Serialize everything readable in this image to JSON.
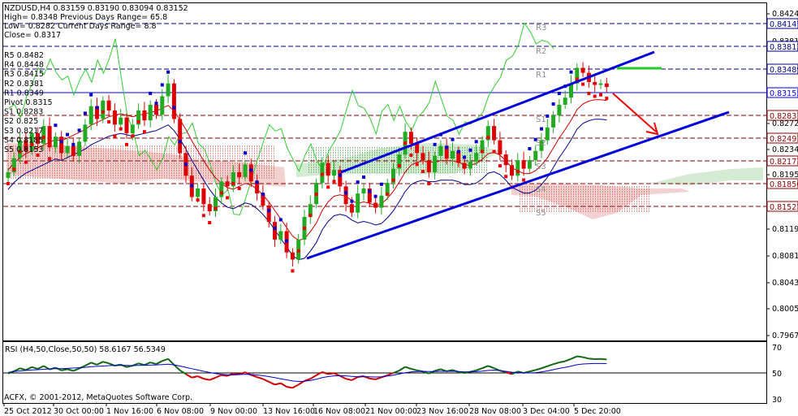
{
  "chart_data": {
    "type": "candlestick",
    "symbol_header": "NZDUSD,H4  0.83159 0.83190 0.83094 0.83152",
    "info_lines": [
      "High= 0.8348    Previous Days Range= 65.8",
      "Low= 0.8282    Current Days Range= 8.8",
      "Close= 0.8317"
    ],
    "pivot_labels": [
      "R5 0.8482",
      "R4 0.8448",
      "R3 0.8415",
      "R2 0.8381",
      "R1 0.8349",
      "Pivot 0.8315",
      "S1 0.8283",
      "S2 0.825",
      "S3 0.8217",
      "S4 0.8185",
      "S5 0.8153"
    ],
    "zone_labels": [
      "R3",
      "R2",
      "R1",
      "S1",
      "S2",
      "S3",
      "S4",
      "S5"
    ],
    "price_axis": {
      "labels": [
        "0.84240",
        "0.83810",
        "0.83370",
        "0.82720",
        "0.82340",
        "0.81950",
        "0.81190",
        "0.80810",
        "0.80430",
        "0.80050",
        "0.79670"
      ],
      "tags": [
        {
          "text": "0.84147",
          "color": "#000080"
        },
        {
          "text": "0.83812",
          "color": "#000080"
        },
        {
          "text": "0.83489",
          "color": "#000080"
        },
        {
          "text": "0.83155",
          "color": "#0000ff"
        },
        {
          "text": "0.82831",
          "color": "#8b0000"
        },
        {
          "text": "0.82497",
          "color": "#8b0000"
        },
        {
          "text": "0.82173",
          "color": "#8b0000"
        },
        {
          "text": "0.81850",
          "color": "#8b0000"
        },
        {
          "text": "0.81527",
          "color": "#8b0000"
        }
      ]
    },
    "x_labels": [
      "25 Oct 2012",
      "30 Oct 00:00",
      "1 Nov 16:00",
      "6 Nov 08:00",
      "9 Nov 00:00",
      "13 Nov 16:00",
      "16 Nov 08:00",
      "21 Nov 00:00",
      "23 Nov 16:00",
      "28 Nov 08:00",
      "3 Dec 04:00",
      "5 Dec 20:00"
    ],
    "indicator": {
      "label": "RSI (H4,50,Close,50,50) 58.6167 56.5349",
      "axis_labels": [
        "70",
        "50",
        "30"
      ],
      "level": 50
    },
    "copyright": "ACFX, © 2001-2012, MetaQuotes Software Corp.",
    "series": {
      "close": [
        0.8195,
        0.8215,
        0.824,
        0.8225,
        0.825,
        0.8235,
        0.826,
        0.823,
        0.8245,
        0.8222,
        0.8232,
        0.8218,
        0.8238,
        0.8262,
        0.8288,
        0.827,
        0.8296,
        0.8282,
        0.8262,
        0.8272,
        0.825,
        0.8262,
        0.8282,
        0.8268,
        0.829,
        0.8276,
        0.8302,
        0.832,
        0.827,
        0.8222,
        0.819,
        0.816,
        0.8172,
        0.815,
        0.814,
        0.816,
        0.8182,
        0.8175,
        0.8195,
        0.8188,
        0.8206,
        0.8182,
        0.8165,
        0.8148,
        0.8125,
        0.81,
        0.8112,
        0.8082,
        0.8072,
        0.81,
        0.8132,
        0.815,
        0.818,
        0.8208,
        0.819,
        0.8198,
        0.8175,
        0.815,
        0.8138,
        0.8165,
        0.8172,
        0.8152,
        0.8145,
        0.8162,
        0.818,
        0.82,
        0.822,
        0.8252,
        0.8235,
        0.8222,
        0.8212,
        0.8195,
        0.8218,
        0.8232,
        0.8214,
        0.8225,
        0.8208,
        0.82,
        0.821,
        0.8222,
        0.824,
        0.826,
        0.824,
        0.822,
        0.8205,
        0.819,
        0.8212,
        0.82,
        0.8212,
        0.8225,
        0.824,
        0.8258,
        0.8275,
        0.829,
        0.83,
        0.832,
        0.8342,
        0.8335,
        0.8322,
        0.8318,
        0.832,
        0.8315
      ],
      "conversion_line": [
        0.8205,
        0.8215,
        0.8222,
        0.8228,
        0.8232,
        0.8236,
        0.824,
        0.8244,
        0.8248,
        0.8246,
        0.825,
        0.8254,
        0.8258,
        0.8262,
        0.8268,
        0.8272,
        0.8276,
        0.828,
        0.8282,
        0.8284,
        0.8282,
        0.828,
        0.8282,
        0.8284,
        0.8286,
        0.8288,
        0.8292,
        0.8296,
        0.8288,
        0.8276,
        0.8262,
        0.8246,
        0.8232,
        0.8218,
        0.8205,
        0.8194,
        0.8186,
        0.818,
        0.8178,
        0.8182,
        0.8186,
        0.8184,
        0.8178,
        0.817,
        0.816,
        0.8148,
        0.8136,
        0.8124,
        0.8112,
        0.8106,
        0.8108,
        0.8118,
        0.813,
        0.8148,
        0.816,
        0.8168,
        0.817,
        0.8168,
        0.8162,
        0.8158,
        0.816,
        0.8158,
        0.8155,
        0.8157,
        0.8165,
        0.8175,
        0.8188,
        0.8202,
        0.8212,
        0.8216,
        0.8218,
        0.8216,
        0.8216,
        0.8218,
        0.8218,
        0.8218,
        0.8216,
        0.8212,
        0.8212,
        0.8214,
        0.822,
        0.8228,
        0.823,
        0.8226,
        0.8218,
        0.8208,
        0.8204,
        0.82,
        0.82,
        0.8204,
        0.8212,
        0.8222,
        0.8236,
        0.825,
        0.8262,
        0.8275,
        0.829,
        0.8298,
        0.8302,
        0.8304,
        0.8304,
        0.8303
      ]
    }
  }
}
